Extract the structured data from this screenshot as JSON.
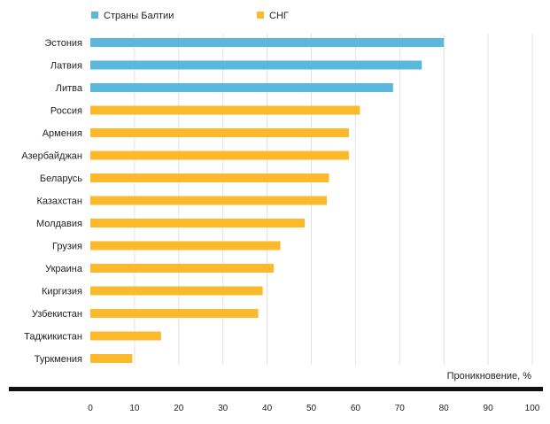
{
  "chart_data": {
    "type": "bar",
    "orientation": "horizontal",
    "categories": [
      "Эстония",
      "Латвия",
      "Литва",
      "Россия",
      "Армения",
      "Азербайджан",
      "Беларусь",
      "Казахстан",
      "Молдавия",
      "Грузия",
      "Украина",
      "Киргизия",
      "Узбекистан",
      "Таджикистан",
      "Туркмения"
    ],
    "values": [
      80,
      75,
      68.5,
      61,
      58.5,
      58.5,
      54,
      53.5,
      48.5,
      43,
      41.5,
      39,
      38,
      16,
      9.5
    ],
    "groups": [
      "baltic",
      "baltic",
      "baltic",
      "cis",
      "cis",
      "cis",
      "cis",
      "cis",
      "cis",
      "cis",
      "cis",
      "cis",
      "cis",
      "cis",
      "cis"
    ],
    "legend": [
      {
        "key": "baltic",
        "label": "Страны Балтии",
        "color": "#5bb8dc"
      },
      {
        "key": "cis",
        "label": "СНГ",
        "color": "#fcb92c"
      }
    ],
    "xlabel": "Проникновение, %",
    "xlim": [
      0,
      100
    ],
    "xticks": [
      "0",
      "10",
      "20",
      "30",
      "40",
      "50",
      "60",
      "70",
      "80",
      "90",
      "100"
    ],
    "grid": true,
    "legend_position": "top-left"
  }
}
